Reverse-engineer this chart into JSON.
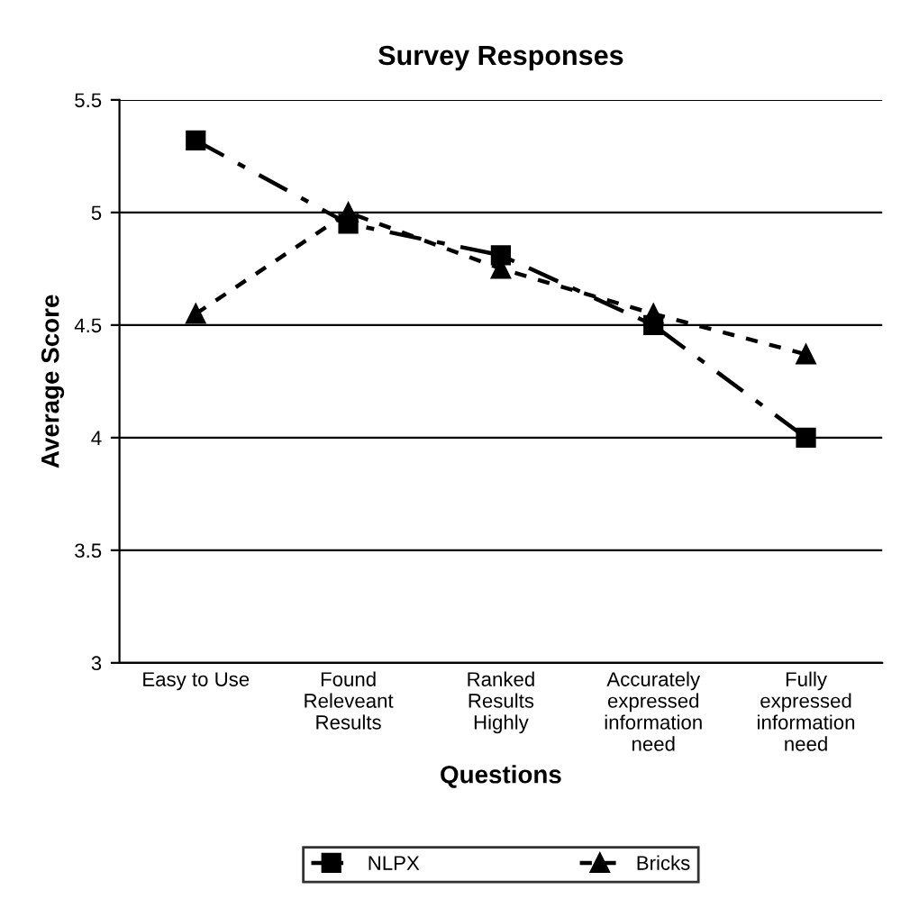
{
  "chart_data": {
    "type": "line",
    "title": "Survey Responses",
    "xlabel": "Questions",
    "ylabel": "Average Score",
    "categories": [
      "Easy to Use",
      "Found\nReleveant\nResults",
      "Ranked\nResults\nHighly",
      "Accurately\nexpressed\ninformation\nneed",
      "Fully\nexpressed\ninformation\nneed"
    ],
    "series": [
      {
        "name": "NLPX",
        "color": "#000000",
        "marker": "square",
        "line_style": "dashed",
        "values": [
          5.32,
          4.95,
          4.81,
          4.5,
          4.0
        ]
      },
      {
        "name": "Bricks",
        "color": "#000000",
        "marker": "triangle",
        "line_style": "dotted",
        "values": [
          4.55,
          5.0,
          4.75,
          4.55,
          4.37
        ]
      }
    ],
    "ylim": [
      3,
      5.5
    ],
    "yticks": [
      3,
      3.5,
      4,
      4.5,
      5,
      5.5
    ],
    "grid": "y",
    "legend": "bottom"
  }
}
